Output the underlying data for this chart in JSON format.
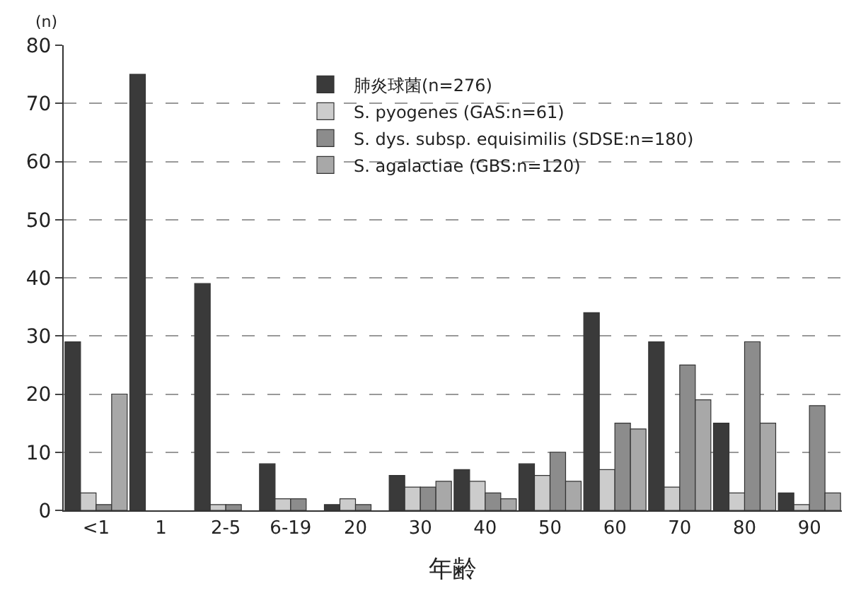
{
  "chart_data": {
    "type": "bar",
    "xlabel": "年齢",
    "ylabel": "(n)",
    "categories": [
      "<1",
      "1",
      "2-5",
      "6-19",
      "20",
      "30",
      "40",
      "50",
      "60",
      "70",
      "80",
      "90"
    ],
    "series": [
      {
        "name": "肺炎球菌(n=276)",
        "color": "#3a3a3a",
        "values": [
          29,
          75,
          39,
          8,
          1,
          6,
          7,
          8,
          34,
          29,
          15,
          3
        ]
      },
      {
        "name": "S. pyogenes (GAS:n=61)",
        "color": "#cccccc",
        "values": [
          3,
          0,
          1,
          2,
          2,
          4,
          5,
          6,
          7,
          4,
          3,
          1
        ]
      },
      {
        "name": "S. dys. subsp. equisimilis (SDSE:n=180)",
        "color": "#8c8c8c",
        "values": [
          1,
          0,
          1,
          2,
          1,
          4,
          3,
          10,
          15,
          25,
          29,
          18
        ]
      },
      {
        "name": "S. agalactiae (GBS:n=120)",
        "color": "#a8a8a8",
        "values": [
          20,
          0,
          0,
          0,
          0,
          5,
          2,
          5,
          14,
          19,
          15,
          3
        ]
      }
    ],
    "ylim": [
      0,
      80
    ],
    "yticks": [
      0,
      10,
      20,
      30,
      40,
      50,
      60,
      70,
      80
    ],
    "grid": "y",
    "legend": "top"
  }
}
